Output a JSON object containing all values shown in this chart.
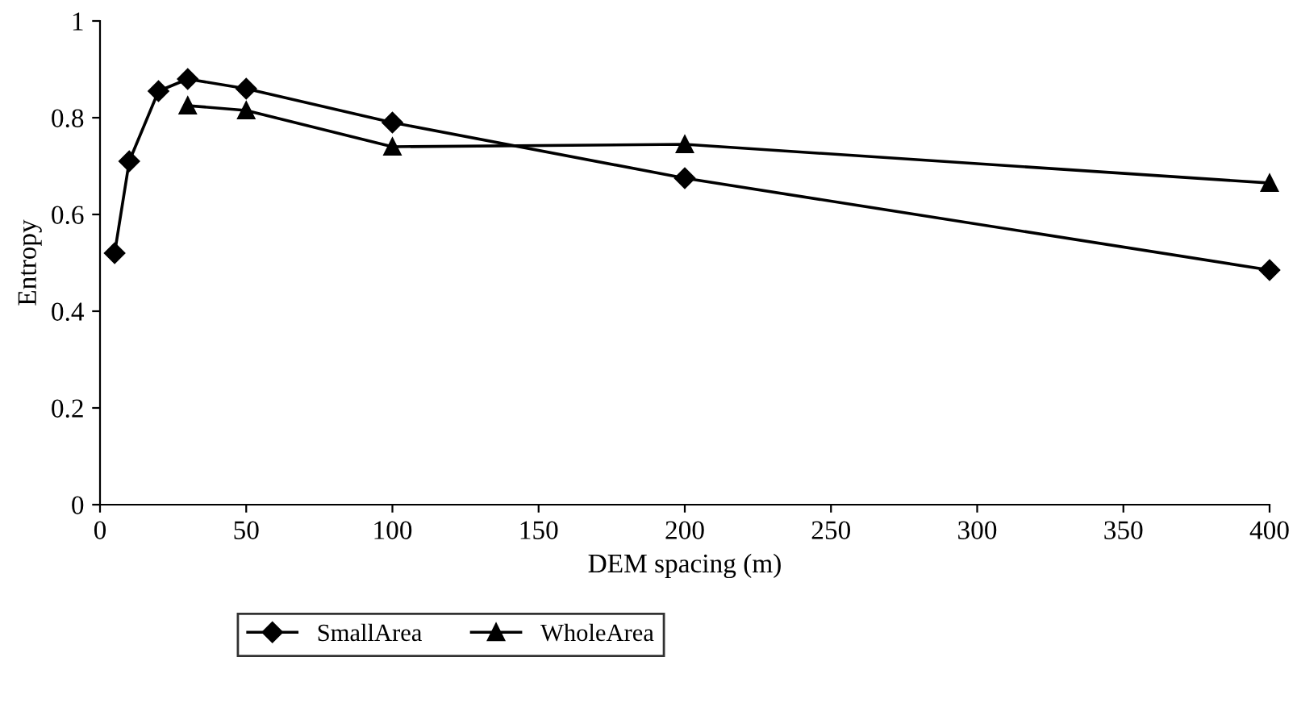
{
  "chart_data": {
    "type": "line",
    "xlabel": "DEM spacing (m)",
    "ylabel": "Entropy",
    "xlim": [
      0,
      400
    ],
    "xticks": [
      0,
      50,
      100,
      150,
      200,
      250,
      300,
      350,
      400
    ],
    "ylim": [
      0,
      1
    ],
    "yticks": [
      0,
      0.2,
      0.4,
      0.6,
      0.8,
      1
    ],
    "grid": false,
    "legend": "bottom",
    "line_style": "solid",
    "series": [
      {
        "name": "SmallArea",
        "color": "#000000",
        "marker": "diamond",
        "x": [
          5,
          10,
          20,
          30,
          50,
          100,
          200,
          400
        ],
        "values": [
          0.52,
          0.71,
          0.855,
          0.88,
          0.86,
          0.79,
          0.675,
          0.485
        ]
      },
      {
        "name": "WholeArea",
        "color": "#000000",
        "marker": "triangle",
        "x": [
          30,
          50,
          100,
          200,
          400
        ],
        "values": [
          0.825,
          0.815,
          0.74,
          0.745,
          0.665
        ]
      }
    ]
  }
}
